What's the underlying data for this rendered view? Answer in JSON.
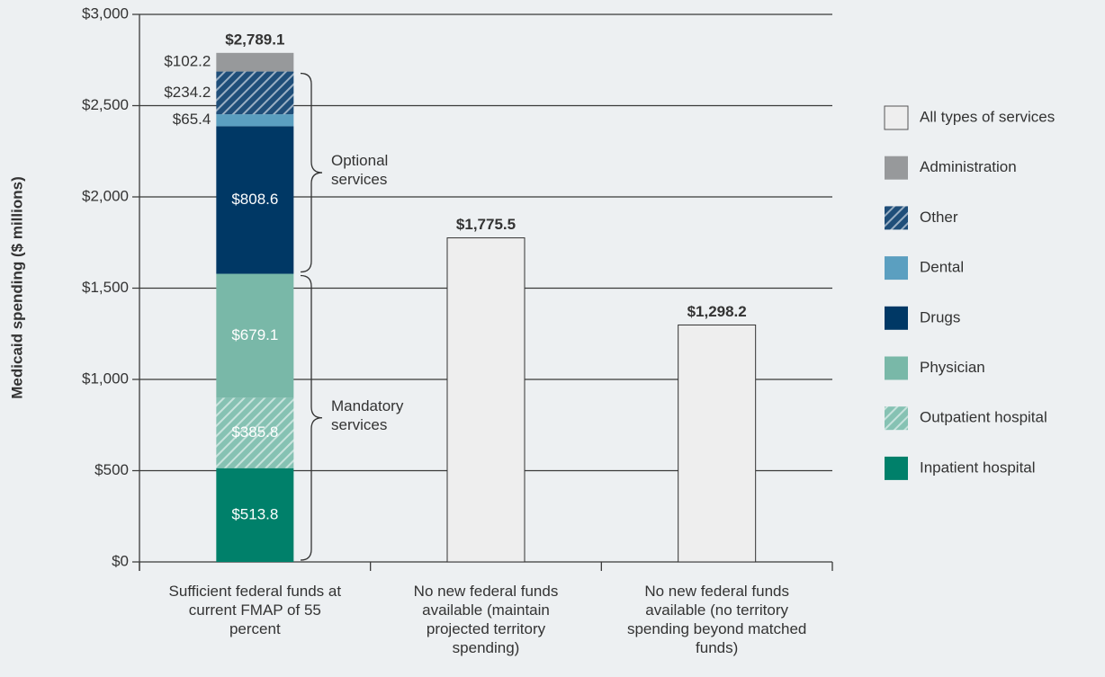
{
  "chart_data": {
    "type": "stacked_bar",
    "y_label": "Medicaid spending ($ millions)",
    "categories": [
      "Sufficient federal funds at current FMAP of 55 percent",
      "No new federal funds available (maintain projected territory spending)",
      "No new federal funds available (no territory spending beyond matched funds)"
    ],
    "series": [
      {
        "name": "Inpatient hospital",
        "color": "#00806a",
        "values": [
          513.8,
          null,
          null
        ],
        "value_labels": [
          "$513.8",
          null,
          null
        ]
      },
      {
        "name": "Outpatient hospital",
        "color": "#86c2b3",
        "hatch": true,
        "values": [
          385.8,
          null,
          null
        ],
        "value_labels": [
          "$385.8",
          null,
          null
        ]
      },
      {
        "name": "Physician",
        "color": "#79b8a8",
        "values": [
          679.1,
          null,
          null
        ],
        "value_labels": [
          "$679.1",
          null,
          null
        ]
      },
      {
        "name": "Drugs",
        "color": "#003865",
        "values": [
          808.6,
          null,
          null
        ],
        "value_labels": [
          "$808.6",
          null,
          null
        ]
      },
      {
        "name": "Dental",
        "color": "#5b9fc0",
        "values": [
          65.4,
          null,
          null
        ],
        "value_labels": [
          "$65.4",
          null,
          null
        ]
      },
      {
        "name": "Other",
        "color": "#1f4e79",
        "hatch": true,
        "values": [
          234.2,
          null,
          null
        ],
        "value_labels": [
          "$234.2",
          null,
          null
        ]
      },
      {
        "name": "Administration",
        "color": "#97999b",
        "values": [
          102.2,
          null,
          null
        ],
        "value_labels": [
          "$102.2",
          null,
          null
        ]
      },
      {
        "name": "All types of services",
        "color": "#eeeeee",
        "values": [
          null,
          1775.5,
          1298.2
        ]
      }
    ],
    "totals": [
      2789.1,
      1775.5,
      1298.2
    ],
    "total_labels": [
      "$2,789.1",
      "$1,775.5",
      "$1,298.2"
    ],
    "annotations": [
      {
        "text": "Optional services",
        "series": [
          3,
          4,
          5
        ]
      },
      {
        "text": "Mandatory services",
        "series": [
          0,
          1,
          2
        ]
      }
    ],
    "ylim": [
      0,
      3000
    ],
    "yticks": [
      {
        "value": 0,
        "label": "$0"
      },
      {
        "value": 500,
        "label": "$500"
      },
      {
        "value": 1000,
        "label": "$1,000"
      },
      {
        "value": 1500,
        "label": "$1,500"
      },
      {
        "value": 2000,
        "label": "$2,000"
      },
      {
        "value": 2500,
        "label": "$2,500"
      },
      {
        "value": 3000,
        "label": "$3,000"
      }
    ],
    "grid": true,
    "legend": "right"
  }
}
